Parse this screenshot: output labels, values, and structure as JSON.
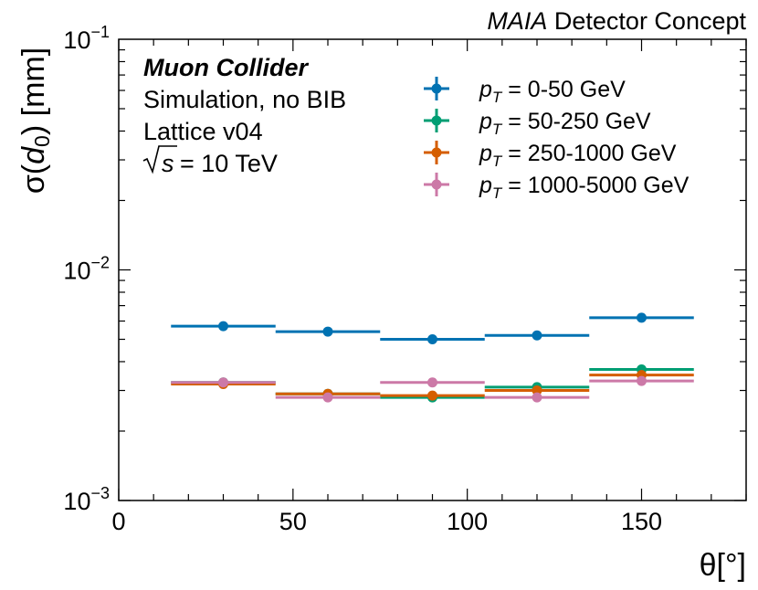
{
  "chart_data": {
    "type": "scatter",
    "title": "",
    "header": {
      "italic": "MAIA",
      "rest": " Detector Concept"
    },
    "xlabel": "θ[°]",
    "ylabel": {
      "prefix": "σ(",
      "var": "d",
      "sub": "0",
      "suffix": ") [mm]"
    },
    "xlim": [
      0,
      180
    ],
    "ylim": [
      0.001,
      0.1
    ],
    "yscale": "log",
    "xticks": [
      0,
      50,
      100,
      150
    ],
    "xtick_labels": [
      "0",
      "50",
      "100",
      "150"
    ],
    "yticks": [
      {
        "value": 0.001,
        "base": "10",
        "exp": "−3"
      },
      {
        "value": 0.01,
        "base": "10",
        "exp": "−2"
      },
      {
        "value": 0.1,
        "base": "10",
        "exp": "−1"
      }
    ],
    "annotations": {
      "line1": "Muon Collider",
      "line2": "Simulation, no BIB",
      "line3": "Lattice v04",
      "line4_var": "s",
      "line4_rest": " = 10 TeV"
    },
    "legend": {
      "position": "top-right",
      "entries": [
        {
          "var": "p",
          "sub": "T",
          "range": " = 0-50 GeV"
        },
        {
          "var": "p",
          "sub": "T",
          "range": " = 50-250 GeV"
        },
        {
          "var": "p",
          "sub": "T",
          "range": " = 250-1000 GeV"
        },
        {
          "var": "p",
          "sub": "T",
          "range": " = 1000-5000 GeV"
        }
      ]
    },
    "bins": [
      {
        "lo": 15,
        "hi": 45,
        "center": 30
      },
      {
        "lo": 45,
        "hi": 75,
        "center": 60
      },
      {
        "lo": 75,
        "hi": 105,
        "center": 90
      },
      {
        "lo": 105,
        "hi": 135,
        "center": 120
      },
      {
        "lo": 135,
        "hi": 165,
        "center": 150
      }
    ],
    "series": [
      {
        "name": "pT = 0-50 GeV",
        "color": "#0072b2",
        "values": [
          0.0057,
          0.0054,
          0.005,
          0.0052,
          0.0062
        ]
      },
      {
        "name": "pT = 50-250 GeV",
        "color": "#009e73",
        "values": [
          0.00325,
          0.0029,
          0.0028,
          0.0031,
          0.0037
        ]
      },
      {
        "name": "pT = 250-1000 GeV",
        "color": "#d55e00",
        "values": [
          0.0032,
          0.0029,
          0.00285,
          0.003,
          0.0035
        ]
      },
      {
        "name": "pT = 1000-5000 GeV",
        "color": "#cc79a7",
        "values": [
          0.00325,
          0.0028,
          0.00325,
          0.0028,
          0.0033
        ]
      }
    ]
  }
}
